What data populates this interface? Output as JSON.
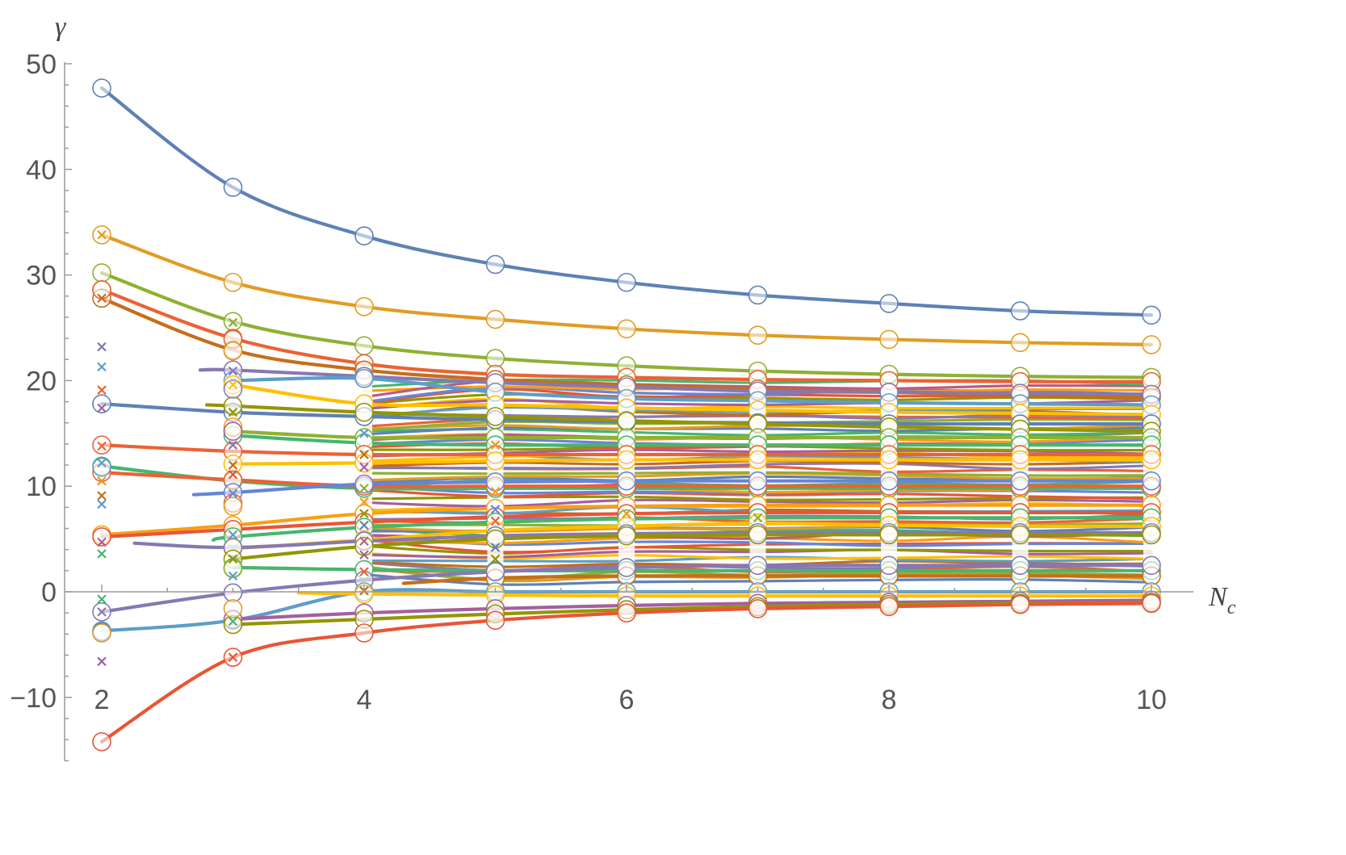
{
  "chart_data": {
    "type": "line",
    "title": "",
    "xlabel": "N",
    "xlabel_sub": "c",
    "ylabel": "γ",
    "xlim": [
      1.9,
      10.3
    ],
    "ylim": [
      -16,
      50
    ],
    "x_ticks": [
      2,
      4,
      6,
      8,
      10
    ],
    "x_tick_labels": [
      "2",
      "4",
      "6",
      "8",
      "10"
    ],
    "y_ticks": [
      -10,
      0,
      10,
      20,
      30,
      40,
      50
    ],
    "y_tick_labels": [
      "−10",
      "0",
      "10",
      "20",
      "30",
      "40",
      "50"
    ],
    "x_minor_step": 0.5,
    "y_minor_step": 2,
    "grid": false,
    "legend": "none",
    "palette": [
      "#5e81b5",
      "#e19c24",
      "#8fb032",
      "#eb6235",
      "#8778b3",
      "#c56e1a",
      "#5d9ec7",
      "#ffbf00",
      "#a5609d",
      "#929600",
      "#e95536",
      "#6685d9",
      "#f89f13",
      "#bc5b80",
      "#47b66d"
    ],
    "series": [
      {
        "color": "#5e81b5",
        "x": [
          2,
          3,
          4,
          5,
          6,
          7,
          8,
          9,
          10
        ],
        "y": [
          47.7,
          38.3,
          33.7,
          31.0,
          29.3,
          28.1,
          27.3,
          26.6,
          26.2
        ],
        "markers": "circle"
      },
      {
        "color": "#e19c24",
        "x": [
          2,
          3,
          4,
          5,
          6,
          7,
          8,
          9,
          10
        ],
        "y": [
          33.8,
          29.3,
          27.0,
          25.8,
          24.9,
          24.3,
          23.9,
          23.6,
          23.4
        ],
        "markers": "circle"
      },
      {
        "color": "#8fb032",
        "x": [
          2,
          3,
          4,
          5,
          6,
          7,
          8,
          9,
          10
        ],
        "y": [
          30.2,
          25.6,
          23.3,
          22.1,
          21.4,
          20.9,
          20.6,
          20.4,
          20.3
        ],
        "markers": "circle"
      },
      {
        "color": "#eb6235",
        "x": [
          2,
          3,
          4,
          5,
          6,
          7,
          8,
          9,
          10
        ],
        "y": [
          28.6,
          24.0,
          21.6,
          20.6,
          20.3,
          20.1,
          20.0,
          19.9,
          19.9
        ],
        "markers": "circle"
      },
      {
        "color": "#c56e1a",
        "x": [
          2,
          3,
          4,
          5,
          6,
          7,
          8,
          9,
          10
        ],
        "y": [
          27.8,
          22.9,
          21.0,
          20.1,
          19.6,
          19.2,
          18.9,
          18.6,
          18.4
        ],
        "markers": "circle"
      },
      {
        "color": "#8778b3",
        "x": [
          2.75,
          3,
          4,
          5,
          6,
          7,
          8,
          9,
          10
        ],
        "y": [
          21.0,
          21.0,
          20.4,
          19.8,
          19.4,
          19.0,
          18.9,
          18.8,
          18.7
        ],
        "markers": "circle"
      },
      {
        "color": "#5d9ec7",
        "x": [
          3,
          4,
          5,
          6,
          7,
          8,
          9,
          10
        ],
        "y": [
          20.0,
          20.2,
          18.9,
          18.3,
          18.1,
          17.9,
          17.8,
          17.7
        ],
        "markers": "circle"
      },
      {
        "color": "#ffbf00",
        "x": [
          3,
          4,
          5,
          6,
          7,
          8,
          9,
          10
        ],
        "y": [
          19.6,
          17.8,
          17.7,
          17.4,
          17.2,
          17.0,
          16.9,
          16.8
        ],
        "markers": "circle"
      },
      {
        "color": "#5e81b5",
        "x": [
          2,
          3,
          4,
          5,
          6,
          7,
          8,
          9,
          10
        ],
        "y": [
          17.8,
          17.0,
          16.6,
          16.3,
          16.1,
          16.0,
          15.9,
          15.9,
          15.9
        ],
        "markers": "circle"
      },
      {
        "color": "#929600",
        "x": [
          2.8,
          3,
          4,
          5,
          6,
          7,
          8,
          9,
          10
        ],
        "y": [
          17.7,
          17.6,
          17.0,
          16.6,
          16.2,
          15.9,
          15.6,
          15.4,
          15.2
        ],
        "markers": "circle"
      },
      {
        "color": "#8fb032",
        "x": [
          3,
          4,
          5,
          6,
          7,
          8,
          9,
          10
        ],
        "y": [
          15.2,
          14.6,
          14.6,
          14.6,
          14.6,
          14.6,
          14.6,
          14.6
        ],
        "markers": "circle"
      },
      {
        "color": "#47b66d",
        "x": [
          3,
          4,
          5,
          6,
          7,
          8,
          9,
          10
        ],
        "y": [
          14.8,
          14.1,
          13.9,
          13.9,
          13.9,
          13.9,
          13.9,
          13.9
        ],
        "markers": "circle"
      },
      {
        "color": "#eb6235",
        "x": [
          2,
          3,
          4,
          5,
          6,
          7,
          8,
          9,
          10
        ],
        "y": [
          13.9,
          13.3,
          13.0,
          13.0,
          13.0,
          13.0,
          13.0,
          13.0,
          13.0
        ],
        "markers": "circle"
      },
      {
        "color": "#ffbf00",
        "x": [
          3,
          4,
          5,
          6,
          7,
          8,
          9,
          10
        ],
        "y": [
          12.1,
          12.2,
          12.4,
          12.5,
          12.5,
          12.5,
          12.5,
          12.5
        ],
        "markers": "circle"
      },
      {
        "color": "#47b66d",
        "x": [
          2,
          3,
          4,
          5,
          6,
          7,
          8,
          9,
          10
        ],
        "y": [
          11.9,
          10.5,
          9.8,
          9.8,
          9.8,
          9.8,
          9.8,
          9.8,
          9.8
        ],
        "markers": "circle"
      },
      {
        "color": "#eb6235",
        "x": [
          2,
          3,
          4,
          5,
          6,
          7,
          8,
          9,
          10
        ],
        "y": [
          11.3,
          10.6,
          10.0,
          10.0,
          10.0,
          10.0,
          10.0,
          10.0,
          10.0
        ],
        "markers": "circle"
      },
      {
        "color": "#6685d9",
        "x": [
          2.7,
          3,
          4,
          5,
          6,
          7,
          8,
          9,
          10
        ],
        "y": [
          9.2,
          9.4,
          10.2,
          10.4,
          10.5,
          10.5,
          10.5,
          10.5,
          10.5
        ],
        "markers": "circle"
      },
      {
        "color": "#f89f13",
        "x": [
          2,
          3,
          4,
          5,
          6,
          7,
          8,
          9,
          10
        ],
        "y": [
          5.4,
          6.3,
          7.4,
          7.9,
          8.1,
          8.2,
          8.2,
          8.2,
          8.2
        ],
        "markers": "circle"
      },
      {
        "color": "#e95536",
        "x": [
          2,
          3,
          4,
          5,
          6,
          7,
          8,
          9,
          10
        ],
        "y": [
          5.2,
          5.9,
          6.6,
          7.1,
          7.4,
          7.5,
          7.5,
          7.5,
          7.5
        ],
        "markers": "circle"
      },
      {
        "color": "#47b66d",
        "x": [
          2.85,
          3,
          4,
          5,
          6,
          7,
          8,
          9,
          10
        ],
        "y": [
          4.9,
          5.2,
          6.1,
          6.6,
          6.9,
          7.0,
          7.0,
          7.0,
          7.0
        ],
        "markers": "circle"
      },
      {
        "color": "#ffbf00",
        "x": [
          3,
          4,
          5,
          6,
          7,
          8,
          9,
          10
        ],
        "y": [
          4.1,
          4.9,
          5.8,
          6.2,
          6.5,
          6.3,
          6.2,
          6.2
        ],
        "markers": "circle"
      },
      {
        "color": "#8778b3",
        "x": [
          2.25,
          3,
          4,
          5,
          6,
          7,
          8,
          9,
          10
        ],
        "y": [
          4.6,
          4.2,
          4.8,
          5.3,
          5.5,
          5.6,
          5.6,
          5.6,
          5.6
        ],
        "markers": "circle"
      },
      {
        "color": "#929600",
        "x": [
          3,
          4,
          5,
          6,
          7,
          8,
          9,
          10
        ],
        "y": [
          3.1,
          4.3,
          5.0,
          5.3,
          5.4,
          5.4,
          5.4,
          5.4
        ],
        "markers": "circle"
      },
      {
        "color": "#47b66d",
        "x": [
          3,
          4,
          5,
          6,
          7,
          8,
          9,
          10
        ],
        "y": [
          2.3,
          2.1,
          2.0,
          2.0,
          2.0,
          2.0,
          2.0,
          2.0
        ],
        "markers": "circle"
      },
      {
        "color": "#c56e1a",
        "x": [
          4.3,
          5,
          6,
          7,
          8,
          9,
          10
        ],
        "y": [
          0.8,
          1.3,
          1.5,
          1.5,
          1.5,
          1.5,
          1.5
        ],
        "markers": "circle"
      },
      {
        "color": "#8778b3",
        "x": [
          2,
          3,
          4,
          5,
          6,
          7,
          8,
          9,
          10
        ],
        "y": [
          -1.9,
          -0.1,
          1.1,
          1.9,
          2.3,
          2.5,
          2.5,
          2.5,
          2.5
        ],
        "markers": "circle"
      },
      {
        "color": "#5d9ec7",
        "x": [
          2,
          3,
          4,
          5,
          6,
          7,
          8,
          9,
          10
        ],
        "y": [
          -3.7,
          -2.7,
          0.0,
          0.0,
          0.0,
          0.0,
          0.0,
          0.0,
          0.0
        ],
        "markers": "circle"
      },
      {
        "color": "#ffbf00",
        "x": [
          3.5,
          4,
          5,
          6,
          7,
          8,
          9,
          10
        ],
        "y": [
          -0.1,
          -0.2,
          -0.3,
          -0.4,
          -0.4,
          -0.4,
          -0.4,
          -0.4
        ],
        "markers": "circle"
      },
      {
        "color": "#a5609d",
        "x": [
          3,
          4,
          5,
          6,
          7,
          8,
          9,
          10
        ],
        "y": [
          -2.6,
          -2.0,
          -1.6,
          -1.3,
          -1.1,
          -1.0,
          -0.9,
          -0.8
        ],
        "markers": "circle"
      },
      {
        "color": "#929600",
        "x": [
          3,
          4,
          5,
          6,
          7,
          8,
          9,
          10
        ],
        "y": [
          -3.1,
          -2.6,
          -2.1,
          -1.7,
          -1.4,
          -1.2,
          -1.1,
          -1.0
        ],
        "markers": "circle"
      },
      {
        "color": "#e95536",
        "x": [
          2,
          3,
          4,
          5,
          6,
          7,
          8,
          9,
          10
        ],
        "y": [
          -14.2,
          -6.2,
          -3.9,
          -2.7,
          -2.0,
          -1.6,
          -1.4,
          -1.2,
          -1.1
        ],
        "markers": "circle"
      }
    ],
    "band": {
      "x_from": 4,
      "x_to": 10,
      "color_count": 60,
      "y_ranges": [
        [
          1.5,
          19.5
        ],
        [
          0.5,
          20.5
        ],
        [
          1.0,
          20.0
        ],
        [
          1.0,
          20.0
        ],
        [
          1.0,
          20.0
        ],
        [
          1.0,
          20.0
        ],
        [
          1.0,
          20.0
        ]
      ]
    },
    "open_circles": [
      {
        "x": 2,
        "y": 28.6,
        "color": "#eb6235"
      },
      {
        "x": 2,
        "y": 11.8,
        "color": "#5d9ec7"
      },
      {
        "x": 2,
        "y": -3.8,
        "color": "#5e81b5"
      },
      {
        "x": 2,
        "y": -3.9,
        "color": "#e19c24"
      },
      {
        "x": 3,
        "y": 23.9,
        "color": "#eb6235"
      },
      {
        "x": 3,
        "y": 22.8,
        "color": "#e19c24"
      },
      {
        "x": 3,
        "y": 19.2,
        "color": "#8778b3"
      },
      {
        "x": 3,
        "y": 15.6,
        "color": "#f89f13"
      },
      {
        "x": 3,
        "y": 15.2,
        "color": "#a5609d"
      },
      {
        "x": 3,
        "y": 8.4,
        "color": "#eb6235"
      },
      {
        "x": 3,
        "y": 8.1,
        "color": "#e19c24"
      },
      {
        "x": 3,
        "y": 2.2,
        "color": "#8fb032"
      },
      {
        "x": 3,
        "y": -0.1,
        "color": "#8778b3"
      },
      {
        "x": 3,
        "y": -1.6,
        "color": "#e19c24"
      }
    ],
    "cross_markers": [
      {
        "x": 2,
        "y": 23.2,
        "color": "#8778b3"
      },
      {
        "x": 2,
        "y": 21.3,
        "color": "#5d9ec7"
      },
      {
        "x": 2,
        "y": 19.1,
        "color": "#eb6235"
      },
      {
        "x": 2,
        "y": 17.4,
        "color": "#a5609d"
      },
      {
        "x": 2,
        "y": 13.8,
        "color": "#eb6235"
      },
      {
        "x": 2,
        "y": 12.2,
        "color": "#5d9ec7"
      },
      {
        "x": 2,
        "y": 10.5,
        "color": "#e19c24"
      },
      {
        "x": 2,
        "y": 9.1,
        "color": "#c56e1a"
      },
      {
        "x": 2,
        "y": 8.3,
        "color": "#5d9ec7"
      },
      {
        "x": 2,
        "y": 4.7,
        "color": "#a5609d"
      },
      {
        "x": 2,
        "y": 3.6,
        "color": "#47b66d"
      },
      {
        "x": 2,
        "y": -0.7,
        "color": "#47b66d"
      },
      {
        "x": 2,
        "y": -1.9,
        "color": "#8778b3"
      },
      {
        "x": 2,
        "y": -6.6,
        "color": "#a5609d"
      },
      {
        "x": 2,
        "y": 27.8,
        "color": "#c56e1a"
      },
      {
        "x": 2,
        "y": 33.8,
        "color": "#e19c24"
      },
      {
        "x": 3,
        "y": 25.5,
        "color": "#8fb032"
      },
      {
        "x": 3,
        "y": 20.9,
        "color": "#8778b3"
      },
      {
        "x": 3,
        "y": 19.6,
        "color": "#ffbf00"
      },
      {
        "x": 3,
        "y": 17.0,
        "color": "#929600"
      },
      {
        "x": 3,
        "y": 13.9,
        "color": "#8778b3"
      },
      {
        "x": 3,
        "y": 12.0,
        "color": "#c56e1a"
      },
      {
        "x": 3,
        "y": 11.1,
        "color": "#e95536"
      },
      {
        "x": 3,
        "y": 9.3,
        "color": "#6685d9"
      },
      {
        "x": 3,
        "y": 5.4,
        "color": "#5d9ec7"
      },
      {
        "x": 3,
        "y": 3.1,
        "color": "#929600"
      },
      {
        "x": 3,
        "y": 1.5,
        "color": "#5d9ec7"
      },
      {
        "x": 3,
        "y": -2.8,
        "color": "#47b66d"
      },
      {
        "x": 3,
        "y": -6.2,
        "color": "#e95536"
      },
      {
        "x": 4,
        "y": 15.0,
        "color": "#5d9ec7"
      },
      {
        "x": 4,
        "y": 13.0,
        "color": "#c56e1a"
      },
      {
        "x": 4,
        "y": 11.8,
        "color": "#a5609d"
      },
      {
        "x": 4,
        "y": 9.8,
        "color": "#8fb032"
      },
      {
        "x": 4,
        "y": 8.5,
        "color": "#f89f13"
      },
      {
        "x": 4,
        "y": 7.4,
        "color": "#929600"
      },
      {
        "x": 4,
        "y": 6.3,
        "color": "#5e81b5"
      },
      {
        "x": 4,
        "y": 4.8,
        "color": "#bc5b80"
      },
      {
        "x": 4,
        "y": 3.5,
        "color": "#a5609d"
      },
      {
        "x": 4,
        "y": 1.9,
        "color": "#eb6235"
      },
      {
        "x": 4,
        "y": 0.1,
        "color": "#c56e1a"
      },
      {
        "x": 5,
        "y": 13.9,
        "color": "#e19c24"
      },
      {
        "x": 5,
        "y": 9.5,
        "color": "#f89f13"
      },
      {
        "x": 5,
        "y": 7.8,
        "color": "#6685d9"
      },
      {
        "x": 5,
        "y": 6.7,
        "color": "#eb6235"
      },
      {
        "x": 5,
        "y": 4.2,
        "color": "#5e81b5"
      },
      {
        "x": 5,
        "y": 3.1,
        "color": "#929600"
      },
      {
        "x": 6,
        "y": 7.4,
        "color": "#e19c24"
      },
      {
        "x": 7,
        "y": 7.0,
        "color": "#8fb032"
      }
    ]
  }
}
